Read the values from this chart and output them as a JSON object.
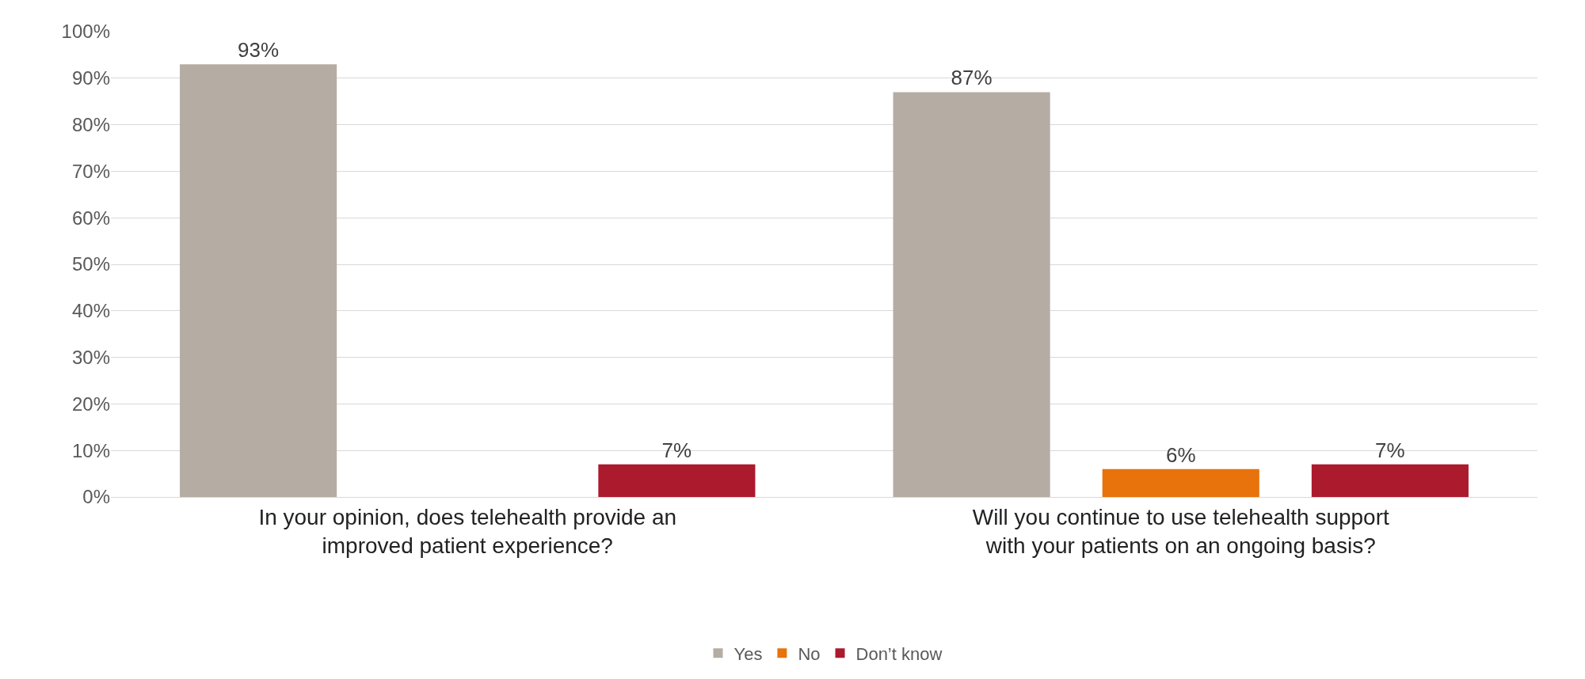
{
  "chart_data": {
    "type": "bar",
    "categories": [
      "In your opinion, does telehealth provide an improved patient experience?",
      "Will you continue to use telehealth support with your patients on an ongoing basis?"
    ],
    "series": [
      {
        "name": "Yes",
        "color": "#b5aca3",
        "values": [
          93,
          87
        ],
        "value_labels": [
          "93%",
          "87%"
        ]
      },
      {
        "name": "No",
        "color": "#e8720c",
        "values": [
          null,
          6
        ],
        "value_labels": [
          null,
          "6%"
        ]
      },
      {
        "name": "Don’t know",
        "color": "#ab1a2d",
        "values": [
          7,
          7
        ],
        "value_labels": [
          "7%",
          "7%"
        ]
      }
    ],
    "ylim": [
      0,
      100
    ],
    "yticks": [
      {
        "value": 0,
        "label": "0%"
      },
      {
        "value": 10,
        "label": "10%"
      },
      {
        "value": 20,
        "label": "20%"
      },
      {
        "value": 30,
        "label": "30%"
      },
      {
        "value": 40,
        "label": "40%"
      },
      {
        "value": 50,
        "label": "50%"
      },
      {
        "value": 60,
        "label": "60%"
      },
      {
        "value": 70,
        "label": "70%"
      },
      {
        "value": 80,
        "label": "80%"
      },
      {
        "value": 90,
        "label": "90%"
      },
      {
        "value": 100,
        "label": "100%"
      }
    ],
    "grid": "y",
    "legend": "bottom"
  }
}
